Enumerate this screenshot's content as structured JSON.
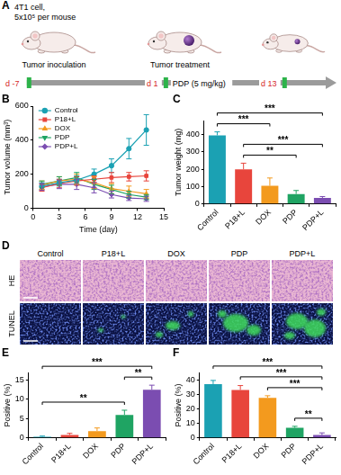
{
  "diagram": {
    "panel": "A",
    "texts": {
      "cells": "4T1 cell,",
      "dose": "5x10⁵ per mouse",
      "inoculation": "Tumor inoculation",
      "treatment": "Tumor treatment",
      "regimen": "PDP (5 mg/kg)"
    },
    "timepoints": [
      "d -7",
      "d 1",
      "d 13"
    ]
  },
  "chart_data": [
    {
      "panel": "B",
      "type": "line",
      "x_label": "Time (day)",
      "y_label": "Tumor volume (mm³)",
      "x": [
        1,
        3,
        5,
        7,
        9,
        11,
        13
      ],
      "xlim": [
        0,
        15
      ],
      "xticks": [
        0,
        3,
        6,
        9,
        12,
        15
      ],
      "ylim": [
        0,
        600
      ],
      "yticks": [
        0,
        200,
        400,
        600
      ],
      "grid": false,
      "legend": "upper left",
      "series": [
        {
          "name": "Control",
          "color": "#1ba1b3",
          "marker": "circle",
          "values": [
            130,
            150,
            165,
            200,
            250,
            350,
            460
          ],
          "errors": [
            20,
            20,
            25,
            30,
            40,
            60,
            90
          ]
        },
        {
          "name": "P18+L",
          "color": "#e8453c",
          "marker": "square",
          "values": [
            120,
            145,
            160,
            170,
            180,
            185,
            190
          ],
          "errors": [
            20,
            25,
            25,
            20,
            30,
            25,
            30
          ]
        },
        {
          "name": "DOX",
          "color": "#f39a1e",
          "marker": "triangle",
          "values": [
            135,
            160,
            170,
            150,
            115,
            100,
            85
          ],
          "errors": [
            25,
            25,
            30,
            35,
            30,
            30,
            25
          ]
        },
        {
          "name": "PDP",
          "color": "#1fa463",
          "marker": "triangle_down",
          "values": [
            140,
            160,
            180,
            140,
            110,
            80,
            65
          ],
          "errors": [
            20,
            25,
            30,
            30,
            25,
            20,
            15
          ]
        },
        {
          "name": "PDP+L",
          "color": "#7b4db1",
          "marker": "diamond",
          "values": [
            125,
            140,
            140,
            120,
            80,
            60,
            55
          ],
          "errors": [
            20,
            25,
            30,
            30,
            20,
            15,
            15
          ]
        }
      ]
    },
    {
      "panel": "C",
      "type": "bar",
      "y_label": "Tumor weight (mg)",
      "categories": [
        "Control",
        "P18+L",
        "DOX",
        "PDP",
        "PDP+L"
      ],
      "values": [
        395,
        200,
        105,
        58,
        35
      ],
      "errors": [
        20,
        35,
        45,
        20,
        8
      ],
      "colors": [
        "#1ba1b3",
        "#e8453c",
        "#f39a1e",
        "#1fa463",
        "#7b4db1"
      ],
      "ylim": [
        0,
        480
      ],
      "yticks": [
        0,
        100,
        200,
        300,
        400
      ],
      "grid": false,
      "annotations": [
        {
          "from": "Control",
          "to": "PDP+L",
          "text": "***"
        },
        {
          "from": "Control",
          "to": "DOX",
          "text": "***"
        },
        {
          "from": "P18+L",
          "to": "PDP+L",
          "text": "***"
        },
        {
          "from": "P18+L",
          "to": "PDP",
          "text": "**"
        }
      ]
    },
    {
      "panel": "E",
      "type": "bar",
      "y_label": "Positive (%)",
      "categories": [
        "Control",
        "P18+L",
        "DOX",
        "PDP",
        "PDP+L"
      ],
      "values": [
        0.3,
        0.8,
        1.8,
        6.0,
        12.5
      ],
      "errors": [
        0.2,
        0.4,
        0.8,
        1.2,
        1.2
      ],
      "colors": [
        "#1ba1b3",
        "#e8453c",
        "#f39a1e",
        "#1fa463",
        "#7b4db1"
      ],
      "ylim": [
        0,
        17
      ],
      "yticks": [
        0,
        5,
        10,
        15
      ],
      "grid": false,
      "annotations": [
        {
          "from": "Control",
          "to": "PDP+L",
          "text": "***"
        },
        {
          "from": "Control",
          "to": "PDP",
          "text": "**"
        },
        {
          "from": "PDP",
          "to": "PDP+L",
          "text": "**"
        }
      ]
    },
    {
      "panel": "F",
      "type": "bar",
      "y_label": "Positive (%)",
      "categories": [
        "Control",
        "P18+L",
        "DOX",
        "PDP",
        "PDP+L"
      ],
      "values": [
        37,
        33,
        27.5,
        7,
        2
      ],
      "errors": [
        2.5,
        3,
        1.5,
        1,
        1.5
      ],
      "colors": [
        "#1ba1b3",
        "#e8453c",
        "#f39a1e",
        "#1fa463",
        "#7b4db1"
      ],
      "ylim": [
        0,
        45
      ],
      "yticks": [
        0,
        10,
        20,
        30,
        40
      ],
      "grid": false,
      "annotations": [
        {
          "from": "Control",
          "to": "PDP+L",
          "text": "***"
        },
        {
          "from": "P18+L",
          "to": "PDP+L",
          "text": "***"
        },
        {
          "from": "DOX",
          "to": "PDP+L",
          "text": "***"
        },
        {
          "from": "PDP",
          "to": "PDP+L",
          "text": "**"
        }
      ]
    }
  ],
  "images": {
    "panel": "D",
    "columns": [
      "Control",
      "P18+L",
      "DOX",
      "PDP",
      "PDP+L"
    ],
    "rows": [
      "HE",
      "TUNEL"
    ]
  }
}
